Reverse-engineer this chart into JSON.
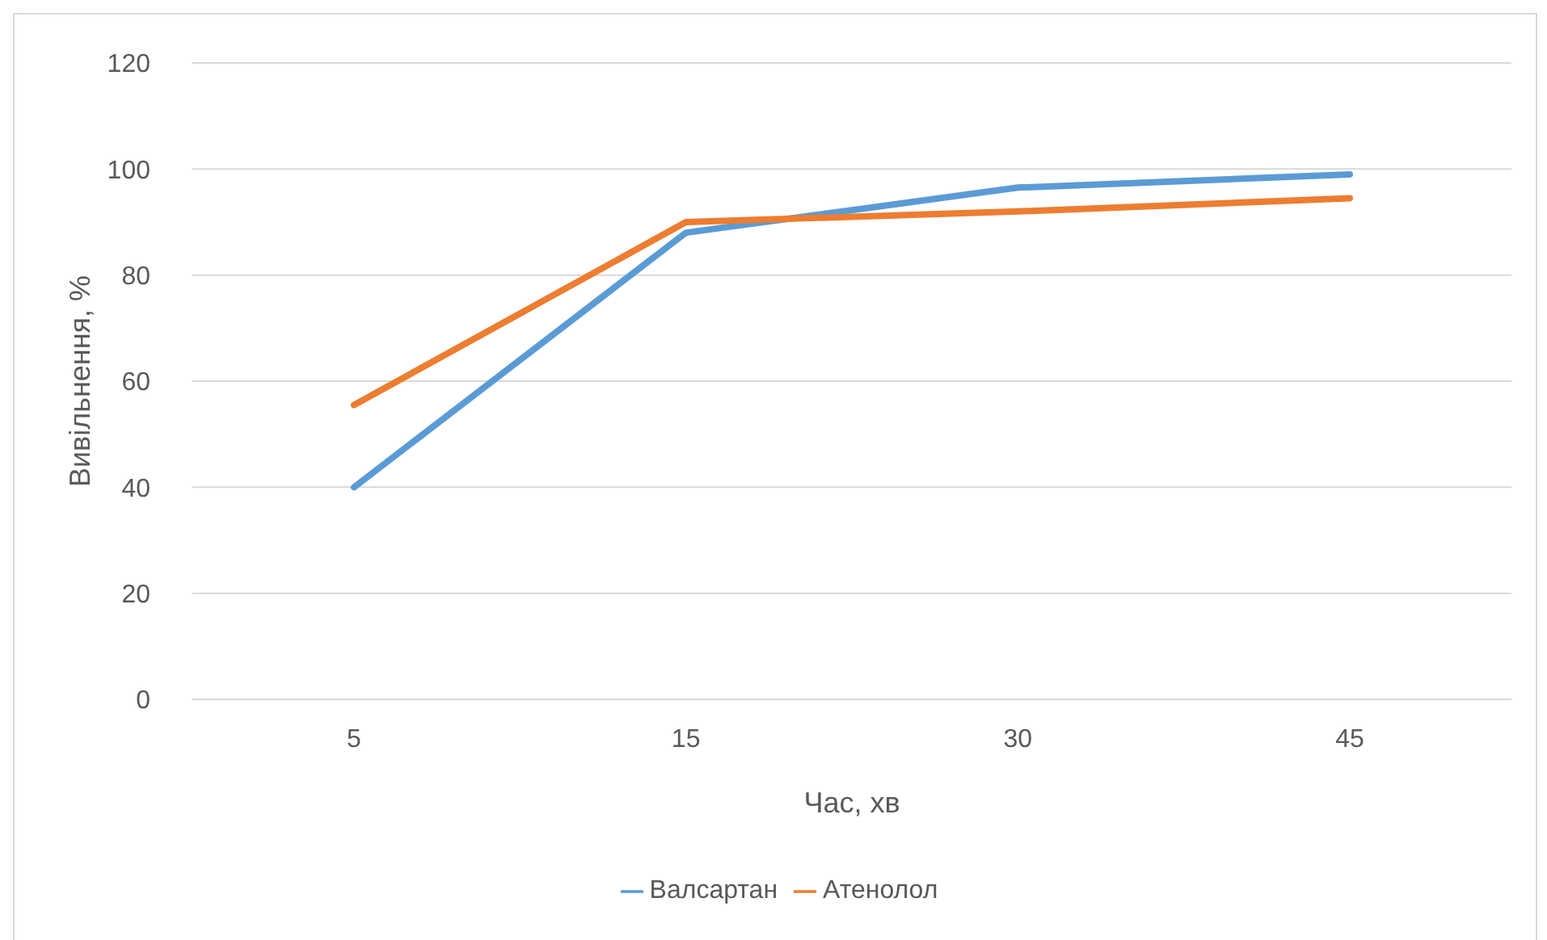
{
  "chart_data": {
    "type": "line",
    "xlabel": "Час, хв",
    "ylabel": "Вивільнення, %",
    "categories": [
      "5",
      "15",
      "30",
      "45"
    ],
    "series": [
      {
        "name": "Валсартан",
        "color": "#5b9bd5",
        "values": [
          40,
          88,
          96.5,
          99
        ]
      },
      {
        "name": "Атенолол",
        "color": "#ed7d31",
        "values": [
          55.5,
          90,
          92,
          94.5
        ]
      }
    ],
    "ylim": [
      0,
      120
    ],
    "yticks": [
      0,
      20,
      40,
      60,
      80,
      100,
      120
    ],
    "grid": "y",
    "legend": "bottom",
    "marker": "none",
    "line_style": "solid"
  }
}
